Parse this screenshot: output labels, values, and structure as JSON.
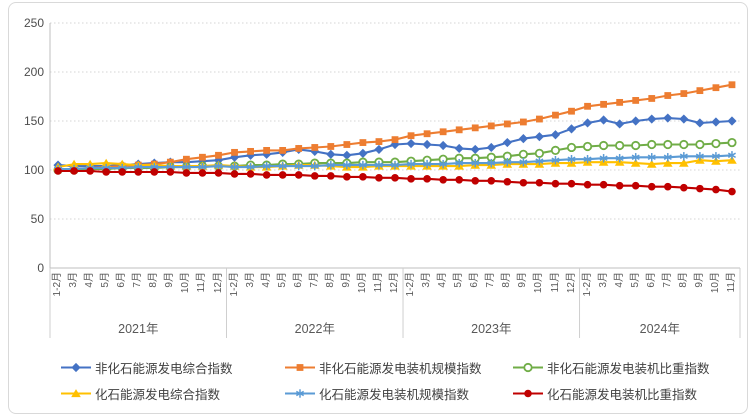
{
  "chart_data": {
    "type": "line",
    "title": "",
    "ylim": [
      0,
      250
    ],
    "y_ticks": [
      0,
      50,
      100,
      150,
      200,
      250
    ],
    "grid": true,
    "legend_position": "bottom",
    "x_years": [
      {
        "label": "2021年",
        "months": [
          "1-2月",
          "3月",
          "4月",
          "5月",
          "6月",
          "7月",
          "8月",
          "9月",
          "10月",
          "11月",
          "12月"
        ]
      },
      {
        "label": "2022年",
        "months": [
          "1-2月",
          "3月",
          "4月",
          "5月",
          "6月",
          "7月",
          "8月",
          "9月",
          "10月",
          "11月",
          "12月"
        ]
      },
      {
        "label": "2023年",
        "months": [
          "1-2月",
          "3月",
          "4月",
          "5月",
          "6月",
          "7月",
          "8月",
          "9月",
          "10月",
          "11月",
          "12月"
        ]
      },
      {
        "label": "2024年",
        "months": [
          "1-2月",
          "3月",
          "4月",
          "5月",
          "6月",
          "7月",
          "8月",
          "9月",
          "10月",
          "11月"
        ]
      }
    ],
    "series": [
      {
        "name": "非化石能源发电综合指数",
        "color": "#4472C4",
        "marker": "diamond",
        "values": [
          105,
          104,
          104,
          104,
          105,
          106,
          107,
          108,
          108,
          109,
          110,
          113,
          115,
          116,
          118,
          121,
          119,
          116,
          115,
          117,
          121,
          126,
          127,
          126,
          125,
          122,
          121,
          123,
          128,
          132,
          134,
          136,
          142,
          148,
          151,
          147,
          150,
          152,
          153,
          152,
          148,
          149,
          150
        ]
      },
      {
        "name": "非化石能源发电装机规模指数",
        "color": "#ED7D31",
        "marker": "square",
        "values": [
          100,
          101,
          102,
          103,
          104,
          105,
          106,
          108,
          111,
          113,
          115,
          118,
          119,
          120,
          120,
          122,
          123,
          124,
          126,
          128,
          129,
          131,
          135,
          137,
          139,
          141,
          143,
          145,
          147,
          149,
          152,
          156,
          160,
          165,
          167,
          169,
          171,
          173,
          176,
          178,
          181,
          184,
          187
        ]
      },
      {
        "name": "非化石能源发电装机比重指数",
        "color": "#70AD47",
        "marker": "circle-open",
        "values": [
          100,
          100,
          101,
          101,
          102,
          102,
          102,
          103,
          103,
          104,
          104,
          104,
          105,
          105,
          106,
          106,
          107,
          107,
          107,
          108,
          108,
          108,
          109,
          110,
          111,
          112,
          112,
          113,
          114,
          116,
          117,
          120,
          123,
          124,
          125,
          125,
          125,
          126,
          126,
          126,
          126,
          127,
          128
        ]
      },
      {
        "name": "化石能源发电综合指数",
        "color": "#FFC000",
        "marker": "triangle",
        "values": [
          103,
          106,
          106,
          107,
          106,
          105,
          105,
          104,
          104,
          104,
          105,
          104,
          103,
          103,
          104,
          105,
          105,
          104,
          103,
          103,
          104,
          104,
          104,
          104,
          104,
          104,
          105,
          105,
          106,
          106,
          106,
          107,
          107,
          108,
          108,
          108,
          107,
          106,
          107,
          107,
          110,
          109,
          110
        ]
      },
      {
        "name": "化石能源发电装机规模指数",
        "color": "#5B9BD5",
        "marker": "asterisk",
        "values": [
          101,
          101,
          102,
          102,
          102,
          103,
          103,
          103,
          103,
          103,
          104,
          103,
          103,
          104,
          104,
          104,
          104,
          105,
          105,
          105,
          105,
          105,
          106,
          106,
          106,
          107,
          107,
          107,
          108,
          108,
          109,
          110,
          111,
          111,
          112,
          112,
          113,
          113,
          113,
          114,
          114,
          114,
          115
        ]
      },
      {
        "name": "化石能源发电装机比重指数",
        "color": "#C00000",
        "marker": "circle",
        "values": [
          99,
          99,
          99,
          98,
          98,
          98,
          98,
          98,
          97,
          97,
          97,
          96,
          96,
          95,
          95,
          95,
          94,
          94,
          93,
          93,
          92,
          92,
          91,
          91,
          90,
          90,
          89,
          89,
          88,
          87,
          87,
          86,
          86,
          85,
          85,
          84,
          84,
          83,
          83,
          82,
          81,
          80,
          78
        ]
      }
    ],
    "axis_colors": {
      "gridline": "#d4d4d4",
      "axis_line": "#bfbfbf",
      "separator": "#cfcfcf"
    }
  }
}
